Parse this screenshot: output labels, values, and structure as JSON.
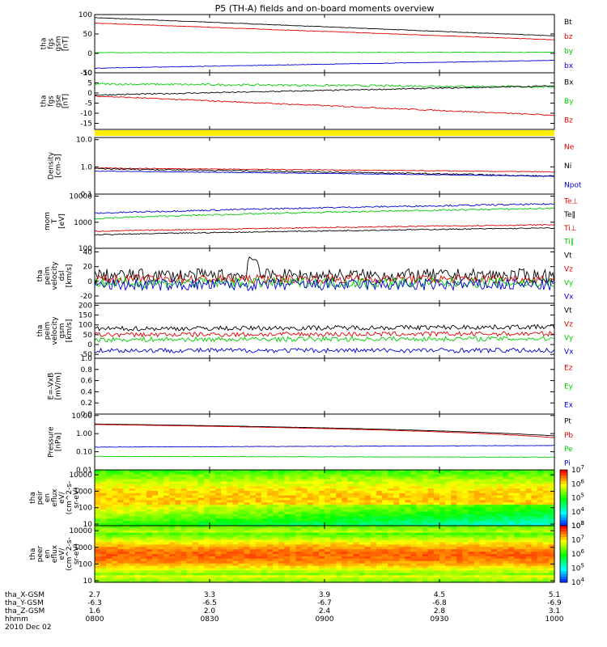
{
  "title": "P5 (TH-A) fields and on-board moments overview",
  "colors": {
    "black": "#000000",
    "red": "#dd0000",
    "green": "#00cc00",
    "blue": "#0000cc",
    "yellow": "#ffee00"
  },
  "chart_data": [
    {
      "type": "line",
      "id": "p1",
      "ylabel": [
        "tha",
        "fgs",
        "gsm",
        "[nT]"
      ],
      "ylim": [
        -50,
        100
      ],
      "ticks": [
        "100",
        "50",
        "0",
        "-50"
      ],
      "tickvals": [
        100,
        50,
        0,
        -50
      ],
      "legend": [
        "Bt",
        "bz",
        "by",
        "bx"
      ],
      "series": [
        {
          "name": "Bt",
          "color": "black",
          "start": 92,
          "end": 45,
          "noise": 0.6
        },
        {
          "name": "bz",
          "color": "red",
          "start": 78,
          "end": 35,
          "noise": 0.6
        },
        {
          "name": "by",
          "color": "green",
          "start": 2,
          "end": 3,
          "noise": 0.6
        },
        {
          "name": "bx",
          "color": "blue",
          "start": -38,
          "end": -18,
          "noise": 0.6
        }
      ]
    },
    {
      "type": "line",
      "id": "p2",
      "ylabel": [
        "tha",
        "fgs",
        "gse",
        "[nT]"
      ],
      "ylim": [
        -18,
        10
      ],
      "ticks": [
        "10",
        "5",
        "0",
        "-5",
        "-10",
        "-15"
      ],
      "tickvals": [
        10,
        5,
        0,
        -5,
        -10,
        -15
      ],
      "legend": [
        "Bx",
        "By",
        "Bz"
      ],
      "series": [
        {
          "name": "By",
          "color": "green",
          "start": 4.5,
          "end": 3,
          "noise": 0.5
        },
        {
          "name": "Bx",
          "color": "black",
          "start": -1,
          "end": 3.5,
          "noise": 0.3
        },
        {
          "name": "Bz",
          "color": "red",
          "start": -1.5,
          "end": -11,
          "noise": 0.3
        }
      ]
    },
    {
      "type": "line",
      "id": "p3",
      "log": true,
      "ylabel": [
        "Density",
        "[cm-3]"
      ],
      "ylim": [
        0.1,
        12
      ],
      "ticks": [
        "10.0",
        "1.0",
        "0.1"
      ],
      "tickvals": [
        10,
        1,
        0.1
      ],
      "legend": [
        "Ne",
        "Ni",
        "Npot"
      ],
      "series": [
        {
          "name": "Ne",
          "color": "red",
          "start": 0.9,
          "end": 0.65,
          "noise": 0.03
        },
        {
          "name": "Ni",
          "color": "black",
          "start": 0.85,
          "end": 0.45,
          "noise": 0.05
        },
        {
          "name": "Npot",
          "color": "blue",
          "start": 0.7,
          "end": 0.45,
          "noise": 0.02
        }
      ]
    },
    {
      "type": "line",
      "id": "p4",
      "log": true,
      "ylabel": [
        "mom",
        "T",
        "[eV]"
      ],
      "ylim": [
        100,
        12000
      ],
      "ticks": [
        "10000",
        "1000",
        "100"
      ],
      "tickvals": [
        10000,
        1000,
        100
      ],
      "legend": [
        "Te⊥",
        "Te‖",
        "Ti⊥",
        "Ti‖"
      ],
      "series": [
        {
          "name": "Te⊥",
          "color": "blue",
          "start": 2200,
          "end": 5000,
          "noise": 0.06
        },
        {
          "name": "Ti‖",
          "color": "green",
          "start": 1400,
          "end": 3400,
          "noise": 0.06
        },
        {
          "name": "Te‖",
          "color": "red",
          "start": 450,
          "end": 800,
          "noise": 0.04
        },
        {
          "name": "Ti⊥",
          "color": "black",
          "start": 330,
          "end": 600,
          "noise": 0.04
        }
      ]
    },
    {
      "type": "line",
      "id": "p5",
      "ylabel": [
        "tha",
        "peim",
        "velocity",
        "dsl",
        "[km/s]"
      ],
      "ylim": [
        -30,
        45
      ],
      "ticks": [
        "40",
        "20",
        "0",
        "-20"
      ],
      "tickvals": [
        40,
        20,
        0,
        -20
      ],
      "legend": [
        "Vt",
        "Vz",
        "Vy",
        "Vx"
      ],
      "series": [
        {
          "name": "Vt",
          "color": "black",
          "start": 8,
          "end": 8,
          "noise": 9
        },
        {
          "name": "Vz",
          "color": "red",
          "start": 3,
          "end": 3,
          "noise": 6
        },
        {
          "name": "Vy",
          "color": "green",
          "start": -2,
          "end": -2,
          "noise": 7
        },
        {
          "name": "Vx",
          "color": "blue",
          "start": -5,
          "end": -5,
          "noise": 8
        }
      ]
    },
    {
      "type": "line",
      "id": "p6",
      "ylabel": [
        "tha",
        "peim",
        "velocity",
        "gsm",
        "[km/s]"
      ],
      "ylim": [
        -70,
        210
      ],
      "ticks": [
        "200",
        "150",
        "100",
        "50",
        "0",
        "-50"
      ],
      "tickvals": [
        200,
        150,
        100,
        50,
        0,
        -50
      ],
      "legend": [
        "Vt",
        "Vz",
        "Vy",
        "Vx"
      ],
      "series": [
        {
          "name": "Vt",
          "color": "black",
          "start": 80,
          "end": 90,
          "noise": 12
        },
        {
          "name": "Vz",
          "color": "red",
          "start": 50,
          "end": 55,
          "noise": 12
        },
        {
          "name": "Vy",
          "color": "green",
          "start": 25,
          "end": 30,
          "noise": 12
        },
        {
          "name": "Vx",
          "color": "blue",
          "start": -30,
          "end": -30,
          "noise": 12
        }
      ]
    },
    {
      "type": "line",
      "id": "p7",
      "ylabel": [
        "E=-VxB",
        "[mV/m]"
      ],
      "ylim": [
        0,
        1
      ],
      "ticks": [
        "1.0",
        "0.8",
        "0.6",
        "0.4",
        "0.2",
        "0.0"
      ],
      "tickvals": [
        1,
        0.8,
        0.6,
        0.4,
        0.2,
        0
      ],
      "legend": [
        "Ez",
        "Ey",
        "Ex"
      ],
      "series": []
    },
    {
      "type": "line",
      "id": "p8",
      "log": true,
      "ylabel": [
        "Pressure",
        "[nPa]"
      ],
      "ylim": [
        0.01,
        12
      ],
      "ticks": [
        "10.00",
        "1.00",
        "0.10",
        "0.01"
      ],
      "tickvals": [
        10,
        1,
        0.1,
        0.01
      ],
      "legend": [
        "Pt",
        "Pb",
        "Pe",
        "Pi"
      ],
      "series": [
        {
          "name": "Pt",
          "color": "black",
          "start": 3.4,
          "end": 0.75,
          "noise": 0.01
        },
        {
          "name": "Pb",
          "color": "red",
          "start": 3.2,
          "end": 0.6,
          "noise": 0.01
        },
        {
          "name": "Pe",
          "color": "blue",
          "start": 0.18,
          "end": 0.22,
          "noise": 0.02
        },
        {
          "name": "Pi",
          "color": "green",
          "start": 0.055,
          "end": 0.05,
          "noise": 0.02
        }
      ]
    },
    {
      "type": "heatmap",
      "id": "p9",
      "log": true,
      "ylabel": [
        "tha",
        "peir",
        "en",
        "eflux",
        "eV/",
        "(cm^2-s-",
        "sr-eV)"
      ],
      "ylim": [
        8,
        20000
      ],
      "ticks": [
        "10000",
        "1000",
        "100",
        "10"
      ],
      "tickvals": [
        10000,
        1000,
        100,
        10
      ],
      "colorbar": {
        "ticks": [
          "7",
          "6",
          "5",
          "4",
          "3"
        ],
        "range": [
          3,
          7
        ]
      }
    },
    {
      "type": "heatmap",
      "id": "p10",
      "log": true,
      "ylabel": [
        "tha",
        "peer",
        "en",
        "eflux",
        "eV/",
        "(cm^2-s-",
        "sr-eV)"
      ],
      "ylim": [
        8,
        20000
      ],
      "ticks": [
        "10000",
        "1000",
        "100",
        "10"
      ],
      "tickvals": [
        10000,
        1000,
        100,
        10
      ],
      "colorbar": {
        "ticks": [
          "8",
          "7",
          "6",
          "5",
          "4"
        ],
        "range": [
          4,
          8
        ]
      }
    }
  ],
  "xaxis": {
    "ticks": [
      "0800",
      "0830",
      "0900",
      "0930",
      "1000"
    ],
    "rows": [
      {
        "label": "tha_X-GSM",
        "values": [
          "2.7",
          "3.3",
          "3.9",
          "4.5",
          "5.1"
        ]
      },
      {
        "label": "tha_Y-GSM",
        "values": [
          "-6.3",
          "-6.5",
          "-6.7",
          "-6.8",
          "-6.9"
        ]
      },
      {
        "label": "tha_Z-GSM",
        "values": [
          "1.6",
          "2.0",
          "2.4",
          "2.8",
          "3.1"
        ]
      },
      {
        "label": "hhmm",
        "values": [
          "0800",
          "0830",
          "0900",
          "0930",
          "1000"
        ]
      }
    ],
    "date": "2010 Dec 02"
  }
}
